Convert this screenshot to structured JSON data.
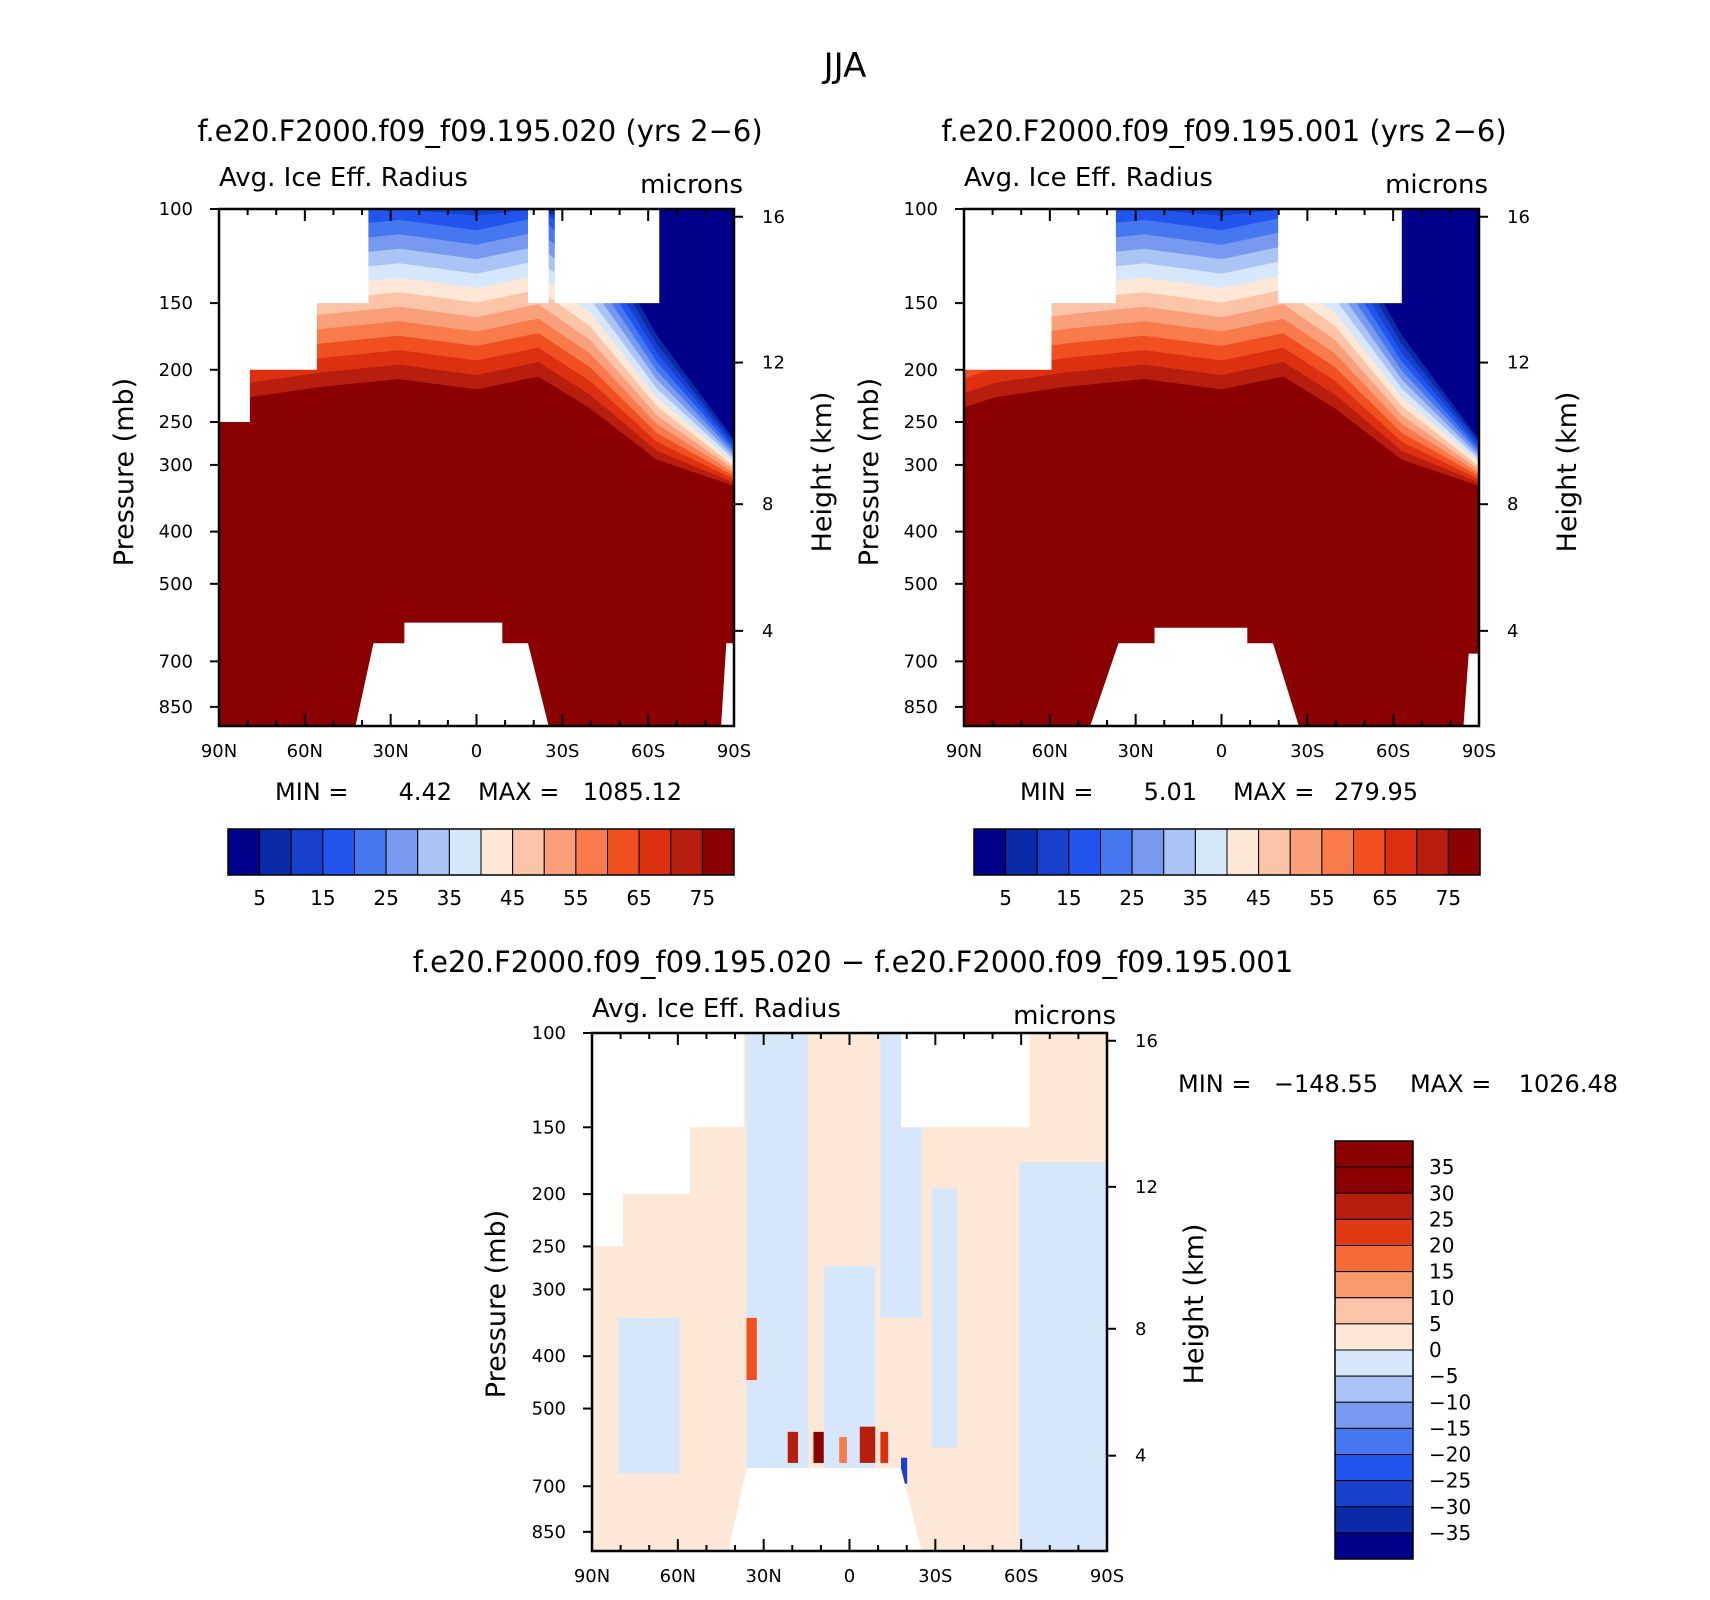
{
  "title": "JJA",
  "panels": [
    {
      "id": "p1",
      "title": "f.e20.F2000.f09_f09.195.020 (yrs 2−6)",
      "left_label": "Avg. Ice Eff. Radius",
      "right_label": "microns",
      "stats": {
        "min_label": "MIN =",
        "min_value": "4.42",
        "max_label": "MAX =",
        "max_value": "1085.12"
      },
      "colorbar": {
        "labels": [
          "5",
          "15",
          "25",
          "35",
          "45",
          "55",
          "65",
          "75"
        ]
      }
    },
    {
      "id": "p2",
      "title": "f.e20.F2000.f09_f09.195.001 (yrs 2−6)",
      "left_label": "Avg. Ice Eff. Radius",
      "right_label": "microns",
      "stats": {
        "min_label": "MIN =",
        "min_value": "5.01",
        "max_label": "MAX =",
        "max_value": "279.95"
      },
      "colorbar": {
        "labels": [
          "5",
          "15",
          "25",
          "35",
          "45",
          "55",
          "65",
          "75"
        ]
      }
    },
    {
      "id": "p3",
      "title": "f.e20.F2000.f09_f09.195.020 − f.e20.F2000.f09_f09.195.001",
      "left_label": "Avg. Ice Eff. Radius",
      "right_label": "microns",
      "stats": {
        "min_label": "MIN =",
        "min_value": "−148.55",
        "max_label": "MAX =",
        "max_value": "1026.48"
      },
      "colorbar": {
        "labels": [
          "35",
          "30",
          "25",
          "20",
          "15",
          "10",
          "5",
          "0",
          "−5",
          "−10",
          "−15",
          "−20",
          "−25",
          "−30",
          "−35"
        ]
      }
    }
  ],
  "axes": {
    "x_ticks": [
      "90N",
      "60N",
      "30N",
      "0",
      "30S",
      "60S",
      "90S"
    ],
    "y_ticks": [
      "100",
      "150",
      "200",
      "250",
      "300",
      "400",
      "500",
      "700",
      "850"
    ],
    "y_right_ticks": [
      "16",
      "12",
      "8",
      "4"
    ],
    "ylabel": "Pressure (mb)",
    "ylabel_right": "Height (km)"
  },
  "colors": {
    "full_scale": [
      "#00008b",
      "#0a2aa8",
      "#1740cc",
      "#2255ee",
      "#4477f0",
      "#7799f0",
      "#aac4f6",
      "#d6e6fb",
      "#fde7d6",
      "#fbc4a6",
      "#f9a07a",
      "#f97a4a",
      "#f05020",
      "#dd3010",
      "#b81e0e",
      "#8b0000"
    ],
    "diff_scale": [
      "#8b0000",
      "#b81e0e",
      "#e03a14",
      "#f56a36",
      "#f99a6c",
      "#fbc4a6",
      "#fde7d6",
      "#d6e6fb",
      "#aac4f6",
      "#7799f0",
      "#4477f0",
      "#2255ee",
      "#1740cc",
      "#0a2aa8",
      "#00008b"
    ]
  },
  "chart_data": [
    {
      "type": "heatmap",
      "title": "f.e20.F2000.f09_f09.195.020 (yrs 2−6)",
      "subtitle_left": "Avg. Ice Eff. Radius",
      "units": "microns",
      "x": [
        "90N",
        "60N",
        "30N",
        "0",
        "30S",
        "60S",
        "90S"
      ],
      "y_pressure_mb": [
        100,
        150,
        200,
        250,
        300,
        400,
        500,
        700,
        850
      ],
      "y_height_km": [
        16,
        12,
        8,
        4
      ],
      "xlabel": "",
      "ylabel": "Pressure (mb)",
      "ylabel_right": "Height (km)",
      "min": 4.42,
      "max": 1085.12,
      "colorbar_levels": [
        5,
        15,
        25,
        35,
        45,
        55,
        65,
        75
      ]
    },
    {
      "type": "heatmap",
      "title": "f.e20.F2000.f09_f09.195.001 (yrs 2−6)",
      "subtitle_left": "Avg. Ice Eff. Radius",
      "units": "microns",
      "x": [
        "90N",
        "60N",
        "30N",
        "0",
        "30S",
        "60S",
        "90S"
      ],
      "y_pressure_mb": [
        100,
        150,
        200,
        250,
        300,
        400,
        500,
        700,
        850
      ],
      "y_height_km": [
        16,
        12,
        8,
        4
      ],
      "xlabel": "",
      "ylabel": "Pressure (mb)",
      "ylabel_right": "Height (km)",
      "min": 5.01,
      "max": 279.95,
      "colorbar_levels": [
        5,
        15,
        25,
        35,
        45,
        55,
        65,
        75
      ]
    },
    {
      "type": "heatmap",
      "title": "f.e20.F2000.f09_f09.195.020 − f.e20.F2000.f09_f09.195.001",
      "subtitle_left": "Avg. Ice Eff. Radius",
      "units": "microns",
      "x": [
        "90N",
        "60N",
        "30N",
        "0",
        "30S",
        "60S",
        "90S"
      ],
      "y_pressure_mb": [
        100,
        150,
        200,
        250,
        300,
        400,
        500,
        700,
        850
      ],
      "y_height_km": [
        16,
        12,
        8,
        4
      ],
      "xlabel": "",
      "ylabel": "Pressure (mb)",
      "ylabel_right": "Height (km)",
      "min": -148.55,
      "max": 1026.48,
      "colorbar_levels": [
        35,
        30,
        25,
        20,
        15,
        10,
        5,
        0,
        -5,
        -10,
        -15,
        -20,
        -25,
        -30,
        -35
      ]
    }
  ]
}
